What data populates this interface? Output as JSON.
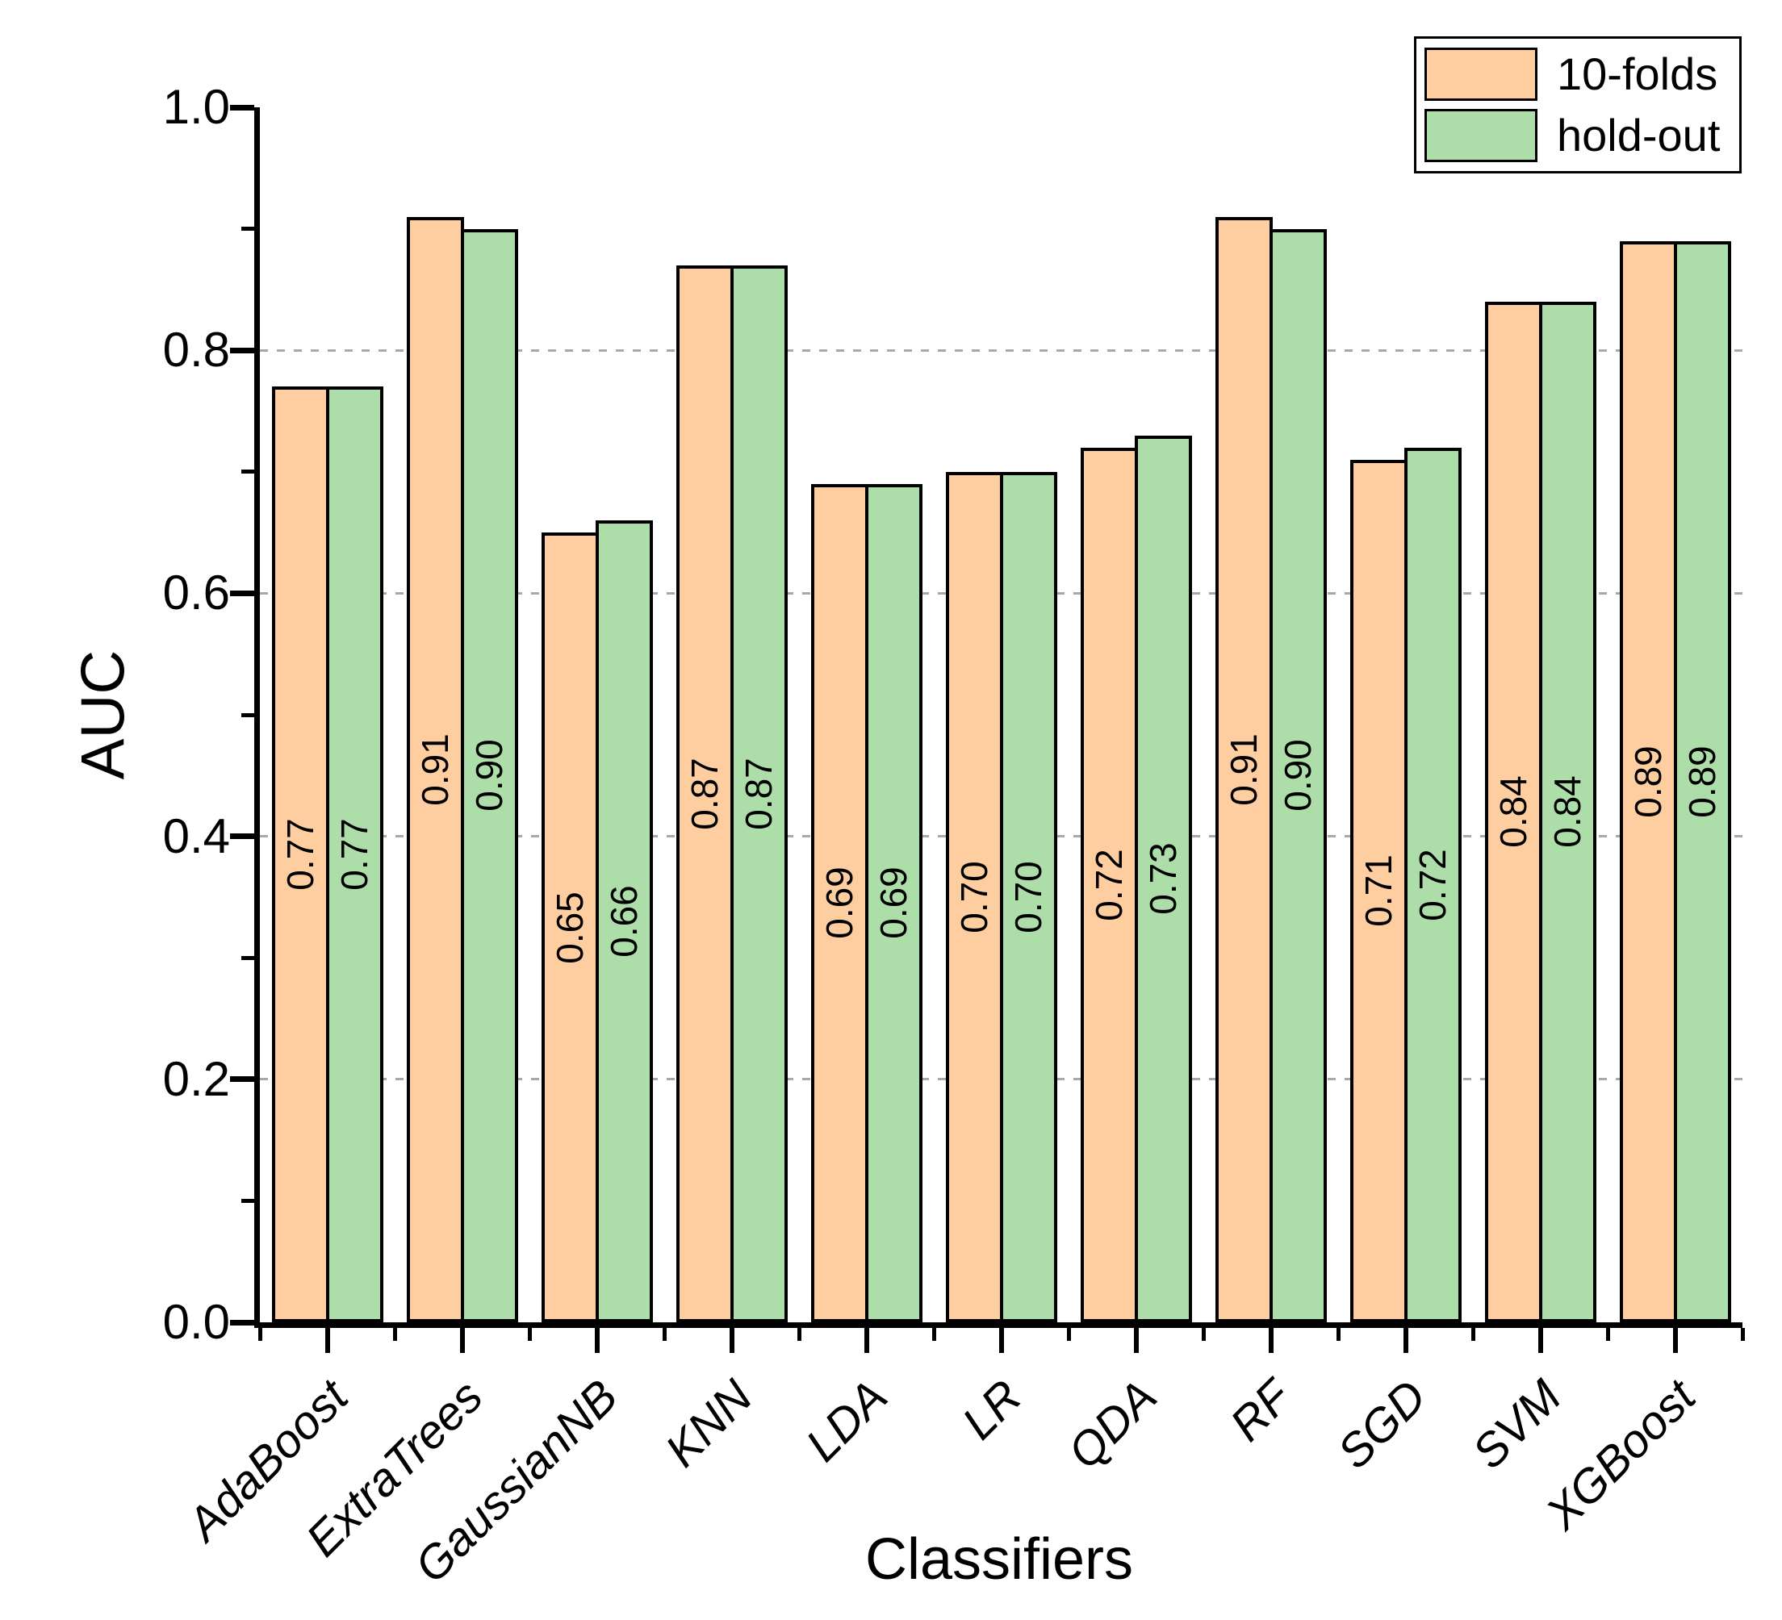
{
  "figure": {
    "background": "#FFFFFF"
  },
  "chart_data": {
    "type": "bar",
    "title": "",
    "xlabel": "Classifiers",
    "ylabel": "AUC",
    "categories": [
      "AdaBoost",
      "ExtraTrees",
      "GaussianNB",
      "KNN",
      "LDA",
      "LR",
      "QDA",
      "RF",
      "SGD",
      "SVM",
      "XGBoost"
    ],
    "series": [
      {
        "name": "10-folds",
        "color": "#FECEA1",
        "values": [
          0.77,
          0.91,
          0.65,
          0.87,
          0.69,
          0.7,
          0.72,
          0.91,
          0.71,
          0.84,
          0.89
        ],
        "value_labels": [
          "0.77",
          "0.91",
          "0.65",
          "0.87",
          "0.69",
          "0.70",
          "0.72",
          "0.91",
          "0.71",
          "0.84",
          "0.89"
        ]
      },
      {
        "name": "hold-out",
        "color": "#ADDDA9",
        "values": [
          0.77,
          0.9,
          0.66,
          0.87,
          0.69,
          0.7,
          0.73,
          0.9,
          0.72,
          0.84,
          0.89
        ],
        "value_labels": [
          "0.77",
          "0.90",
          "0.66",
          "0.87",
          "0.69",
          "0.70",
          "0.73",
          "0.90",
          "0.72",
          "0.84",
          "0.89"
        ]
      }
    ],
    "ylim": [
      0.0,
      1.0
    ],
    "y_major_ticks": [
      0.0,
      0.2,
      0.4,
      0.6,
      0.8,
      1.0
    ],
    "y_major_tick_labels": [
      "0.0",
      "0.2",
      "0.4",
      "0.6",
      "0.8",
      "1.0"
    ],
    "y_minor_tick_step": 0.1,
    "grid": {
      "values": [
        0.2,
        0.4,
        0.6,
        0.8
      ],
      "style": "dashed",
      "color": "#A8A8A8"
    },
    "bar_edge_color": "#000000",
    "legend_position": "top-right",
    "axis_color": "#000000"
  },
  "legend": {
    "items": [
      {
        "label": "10-folds",
        "color": "#FECEA1"
      },
      {
        "label": "hold-out",
        "color": "#ADDDA9"
      }
    ]
  }
}
